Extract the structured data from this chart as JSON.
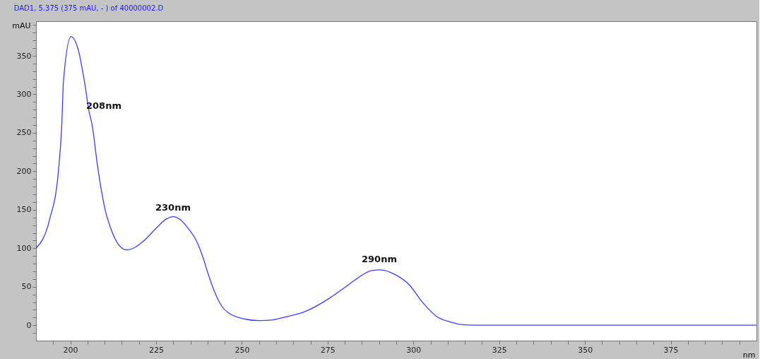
{
  "chart_data": {
    "type": "line",
    "title": "DAD1, 5.375 (375 mAU, - ) of 40000002.D",
    "xlabel": "nm",
    "ylabel": "mAU",
    "x": [
      190,
      194,
      196.5,
      197.5,
      198,
      200.2,
      202.3,
      204.1,
      205.5,
      206.4,
      207.9,
      210.2,
      212.1,
      214,
      216.4,
      218.8,
      221.5,
      225,
      228,
      230,
      232.1,
      234.5,
      236.6,
      238.6,
      240.3,
      242,
      244.1,
      246.1,
      250.9,
      255,
      259.1,
      262,
      268,
      275.5,
      280.3,
      285,
      287.8,
      290.5,
      294.6,
      298.7,
      302.8,
      306.9,
      311,
      313.7,
      317.8,
      350,
      400
    ],
    "series": [
      {
        "color": "#3c3cff",
        "values": [
          100,
          138,
          199,
          259,
          317,
          375,
          358,
          317,
          277,
          259,
          208,
          149,
          122,
          105,
          98,
          101,
          110,
          126,
          138,
          141,
          137,
          125,
          111,
          89,
          65,
          44,
          25,
          16,
          8,
          6,
          7,
          10,
          17,
          35,
          50,
          65,
          71,
          72,
          66,
          53,
          29,
          11,
          4,
          1,
          0,
          0,
          0
        ]
      }
    ],
    "annotations": [
      "208nm",
      "230nm",
      "290nm"
    ],
    "xlim": [
      190,
      400
    ],
    "ylim": [
      -20,
      395
    ],
    "xticks": [
      {
        "value": 195,
        "label": null
      },
      200,
      {
        "value": 205,
        "label": null
      },
      {
        "value": 210,
        "label": null
      },
      {
        "value": 215,
        "label": null
      },
      {
        "value": 220,
        "label": null
      },
      225,
      {
        "value": 230,
        "label": null
      },
      {
        "value": 235,
        "label": null
      },
      {
        "value": 240,
        "label": null
      },
      {
        "value": 245,
        "label": null
      },
      250,
      {
        "value": 255,
        "label": null
      },
      {
        "value": 260,
        "label": null
      },
      {
        "value": 265,
        "label": null
      },
      {
        "value": 270,
        "label": null
      },
      275,
      {
        "value": 280,
        "label": null
      },
      {
        "value": 285,
        "label": null
      },
      {
        "value": 290,
        "label": null
      },
      {
        "value": 295,
        "label": null
      },
      300,
      {
        "value": 305,
        "label": null
      },
      {
        "value": 310,
        "label": null
      },
      {
        "value": 315,
        "label": null
      },
      {
        "value": 320,
        "label": null
      },
      325,
      {
        "value": 330,
        "label": null
      },
      {
        "value": 335,
        "label": null
      },
      {
        "value": 340,
        "label": null
      },
      {
        "value": 345,
        "label": null
      },
      350,
      {
        "value": 355,
        "label": null
      },
      {
        "value": 360,
        "label": null
      },
      {
        "value": 365,
        "label": null
      },
      {
        "value": 370,
        "label": null
      },
      375,
      {
        "value": 380,
        "label": null
      },
      {
        "value": 385,
        "label": null
      },
      {
        "value": 390,
        "label": null
      },
      {
        "value": 395,
        "label": null
      }
    ],
    "yticks": [
      {
        "value": -10,
        "label": null
      },
      0,
      {
        "value": 10,
        "label": null
      },
      {
        "value": 20,
        "label": null
      },
      {
        "value": 30,
        "label": null
      },
      {
        "value": 40,
        "label": null
      },
      50,
      {
        "value": 60,
        "label": null
      },
      {
        "value": 70,
        "label": null
      },
      {
        "value": 80,
        "label": null
      },
      {
        "value": 90,
        "label": null
      },
      100,
      {
        "value": 110,
        "label": null
      },
      {
        "value": 120,
        "label": null
      },
      {
        "value": 130,
        "label": null
      },
      {
        "value": 140,
        "label": null
      },
      150,
      {
        "value": 160,
        "label": null
      },
      {
        "value": 170,
        "label": null
      },
      {
        "value": 180,
        "label": null
      },
      {
        "value": 190,
        "label": null
      },
      200,
      {
        "value": 210,
        "label": null
      },
      {
        "value": 220,
        "label": null
      },
      {
        "value": 230,
        "label": null
      },
      {
        "value": 240,
        "label": null
      },
      250,
      {
        "value": 260,
        "label": null
      },
      {
        "value": 270,
        "label": null
      },
      {
        "value": 280,
        "label": null
      },
      {
        "value": 290,
        "label": null
      },
      300,
      {
        "value": 310,
        "label": null
      },
      {
        "value": 320,
        "label": null
      },
      {
        "value": 330,
        "label": null
      },
      {
        "value": 340,
        "label": null
      },
      350,
      {
        "value": 360,
        "label": null
      },
      {
        "value": 370,
        "label": null
      },
      {
        "value": 380,
        "label": null
      },
      {
        "value": 390,
        "label": null
      }
    ],
    "grid": false,
    "marker": "none",
    "line_style": "solid"
  }
}
